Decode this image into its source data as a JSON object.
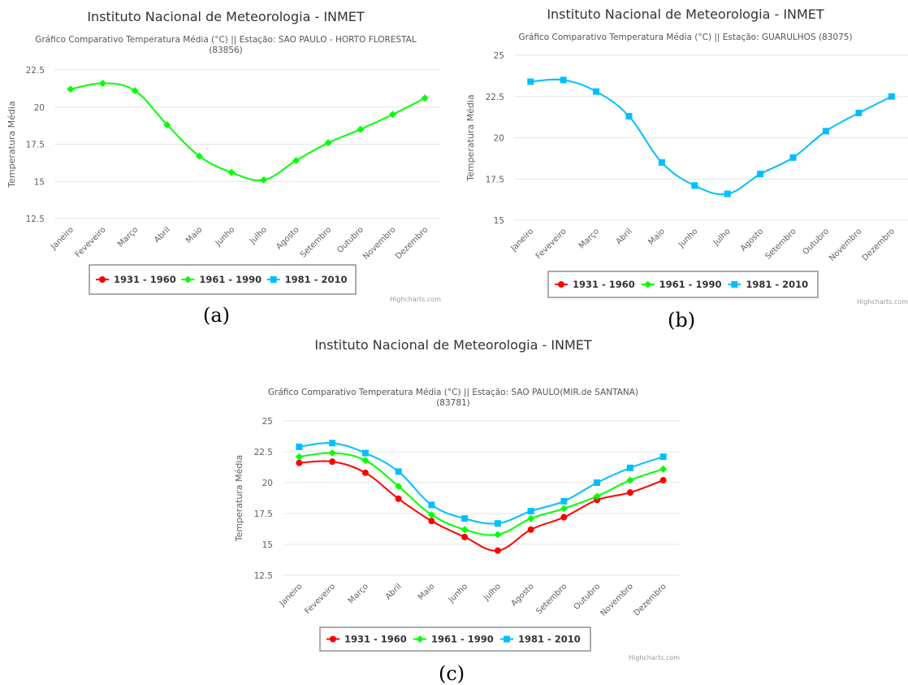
{
  "months": [
    "Janeiro",
    "Feveveiro",
    "Março",
    "Abril",
    "Maio",
    "Junho",
    "Julho",
    "Agosto",
    "Setembro",
    "Outubro",
    "Novembro",
    "Dezembro"
  ],
  "legend": [
    {
      "name": "1931 - 1960",
      "color": "#ff0000",
      "marker": "circle"
    },
    {
      "name": "1961 - 1990",
      "color": "#00ff00",
      "marker": "diamond"
    },
    {
      "name": "1981 - 2010",
      "color": "#00bfff",
      "marker": "square"
    }
  ],
  "credit": "Highcharts.com",
  "chart_data": [
    {
      "type": "line",
      "panel_label": "(a)",
      "title": "Instituto Nacional de Meteorologia - INMET",
      "subtitle_lines": [
        "Gráfico Comparativo Temperatura Média (°C) || Estação: SAO PAULO - HORTO FLORESTAL",
        "(83856)"
      ],
      "ylabel": "Temperatura Média",
      "yticks": [
        "12.5",
        "15",
        "17.5",
        "20",
        "22.5"
      ],
      "ylim": [
        12.5,
        22.5
      ],
      "series": [
        {
          "name": "1961 - 1990",
          "values": [
            21.2,
            21.6,
            21.1,
            18.8,
            16.7,
            15.6,
            15.1,
            16.4,
            17.6,
            18.5,
            19.5,
            20.6
          ]
        }
      ]
    },
    {
      "type": "line",
      "panel_label": "(b)",
      "title": "Instituto Nacional de Meteorologia - INMET",
      "subtitle_lines": [
        "Gráfico Comparativo Temperatura Média (°C) || Estação: GUARULHOS (83075)"
      ],
      "ylabel": "Temperatura Média",
      "yticks": [
        "15",
        "17.5",
        "20",
        "22.5",
        "25"
      ],
      "ylim": [
        15,
        25
      ],
      "series": [
        {
          "name": "1981 - 2010",
          "values": [
            23.4,
            23.5,
            22.8,
            21.3,
            18.5,
            17.1,
            16.6,
            17.8,
            18.8,
            20.4,
            21.5,
            22.5
          ]
        }
      ]
    },
    {
      "type": "line",
      "panel_label": "(c)",
      "title": "Instituto Nacional de Meteorologia - INMET",
      "subtitle_lines": [
        "Gráfico Comparativo Temperatura Média (°C) || Estação: SAO PAULO(MIR.de SANTANA)",
        "(83781)"
      ],
      "ylabel": "Temperatura Média",
      "yticks": [
        "12.5",
        "15",
        "17.5",
        "20",
        "22.5",
        "25"
      ],
      "ylim": [
        12.5,
        25
      ],
      "series": [
        {
          "name": "1931 - 1960",
          "values": [
            21.6,
            21.7,
            20.8,
            18.7,
            16.9,
            15.6,
            14.5,
            16.2,
            17.2,
            18.6,
            19.2,
            20.2
          ]
        },
        {
          "name": "1961 - 1990",
          "values": [
            22.1,
            22.4,
            21.8,
            19.7,
            17.4,
            16.2,
            15.8,
            17.1,
            17.9,
            18.9,
            20.2,
            21.1
          ]
        },
        {
          "name": "1981 - 2010",
          "values": [
            22.9,
            23.2,
            22.4,
            20.9,
            18.2,
            17.1,
            16.7,
            17.7,
            18.5,
            20.0,
            21.2,
            22.1
          ]
        }
      ]
    }
  ]
}
